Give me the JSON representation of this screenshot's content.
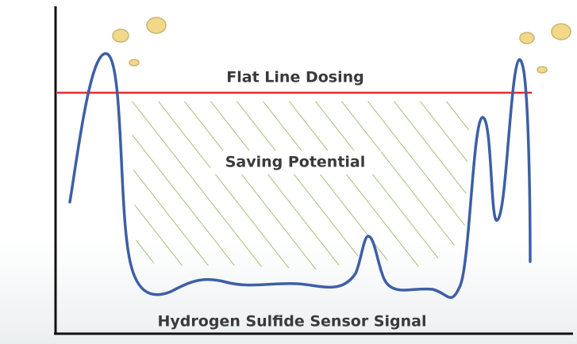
{
  "labels": {
    "threshold": "Flat Line Dosing",
    "area": "Saving Potential",
    "signal": "Hydrogen Sulfide Sensor Signal"
  }
}
